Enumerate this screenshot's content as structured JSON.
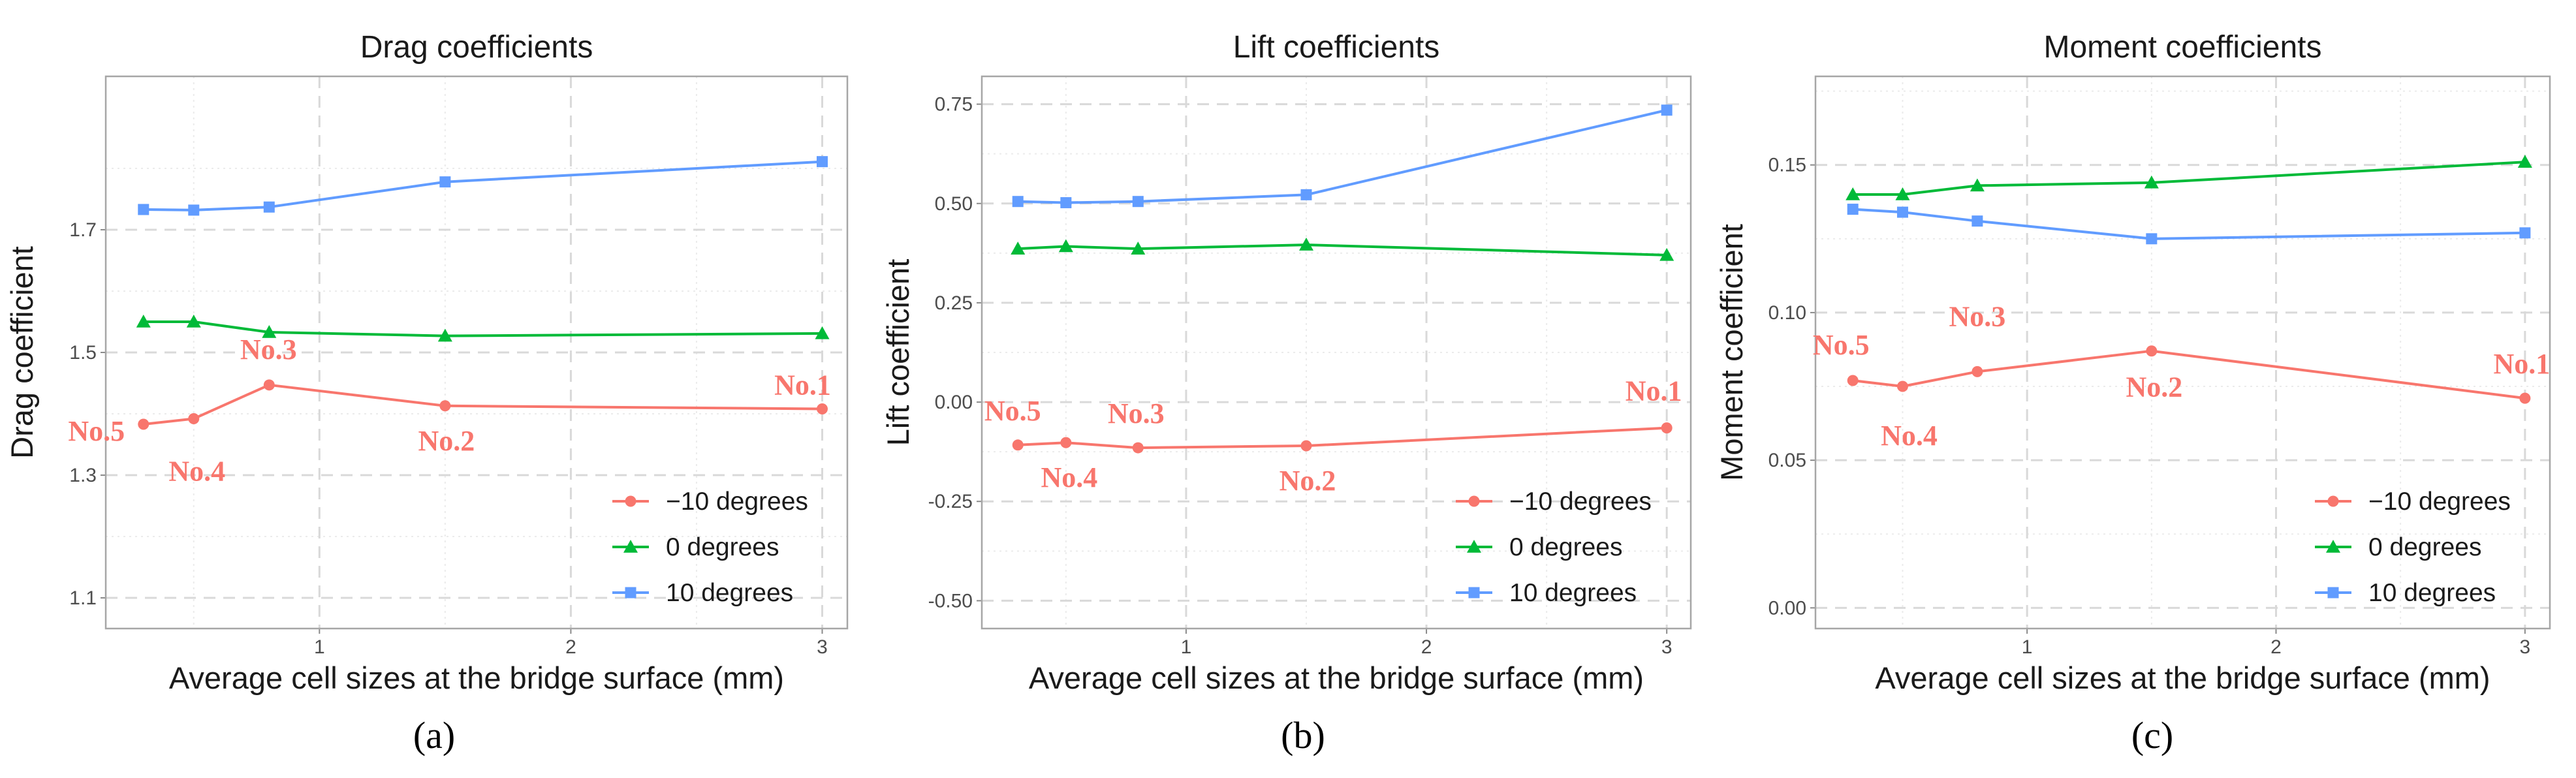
{
  "chart_data": [
    {
      "type": "line",
      "title": "Drag coefficients",
      "xlabel": "Average cell sizes at the bridge surface (mm)",
      "ylabel": "Drag coefficient",
      "caption": "(a)",
      "xlim": [
        0.15,
        3.1
      ],
      "ylim": [
        1.05,
        1.95
      ],
      "xticks": [
        1,
        2,
        3
      ],
      "xtick_labels": [
        "1",
        "2",
        "3"
      ],
      "yticks": [
        1.1,
        1.3,
        1.5,
        1.7
      ],
      "ytick_labels": [
        "1.1",
        "1.3",
        "1.5",
        "1.7"
      ],
      "legend_position": "bottom-right",
      "x": [
        0.3,
        0.5,
        0.8,
        1.5,
        3.0
      ],
      "series": [
        {
          "name": "−10 degrees",
          "color": "#f8766d",
          "marker": "circle",
          "values": [
            1.383,
            1.392,
            1.447,
            1.413,
            1.408
          ]
        },
        {
          "name": "0 degrees",
          "color": "#00ba38",
          "marker": "triangle",
          "values": [
            1.55,
            1.55,
            1.533,
            1.527,
            1.531
          ]
        },
        {
          "name": "10 degrees",
          "color": "#619cff",
          "marker": "square",
          "values": [
            1.733,
            1.732,
            1.737,
            1.778,
            1.811
          ]
        }
      ],
      "annotations": [
        {
          "text": "No.5",
          "x": 0.3,
          "y": 1.383
        },
        {
          "text": "No.4",
          "x": 0.5,
          "y": 1.392
        },
        {
          "text": "No.3",
          "x": 0.8,
          "y": 1.447
        },
        {
          "text": "No.2",
          "x": 1.5,
          "y": 1.413
        },
        {
          "text": "No.1",
          "x": 3.0,
          "y": 1.408
        }
      ]
    },
    {
      "type": "line",
      "title": "Lift coefficients",
      "xlabel": "Average cell sizes at the bridge surface (mm)",
      "ylabel": "Lift coefficient",
      "caption": "(b)",
      "xlim": [
        0.15,
        3.1
      ],
      "ylim": [
        -0.57,
        0.82
      ],
      "xticks": [
        1,
        2,
        3
      ],
      "xtick_labels": [
        "1",
        "2",
        "3"
      ],
      "yticks": [
        -0.5,
        -0.25,
        0,
        0.25,
        0.5,
        0.75
      ],
      "ytick_labels": [
        "-0.50",
        "-0.25",
        "0.00",
        "0.25",
        "0.50",
        "0.75"
      ],
      "legend_position": "bottom-right",
      "x": [
        0.3,
        0.5,
        0.8,
        1.5,
        3.0
      ],
      "series": [
        {
          "name": "−10 degrees",
          "color": "#f8766d",
          "marker": "circle",
          "values": [
            -0.108,
            -0.102,
            -0.115,
            -0.11,
            -0.065
          ]
        },
        {
          "name": "0 degrees",
          "color": "#00ba38",
          "marker": "triangle",
          "values": [
            0.386,
            0.392,
            0.386,
            0.396,
            0.37
          ]
        },
        {
          "name": "10 degrees",
          "color": "#619cff",
          "marker": "square",
          "values": [
            0.505,
            0.502,
            0.505,
            0.522,
            0.735
          ]
        }
      ],
      "annotations": [
        {
          "text": "No.5",
          "x": 0.3,
          "y": -0.108
        },
        {
          "text": "No.4",
          "x": 0.5,
          "y": -0.102
        },
        {
          "text": "No.3",
          "x": 0.8,
          "y": -0.115
        },
        {
          "text": "No.2",
          "x": 1.5,
          "y": -0.11
        },
        {
          "text": "No.1",
          "x": 3.0,
          "y": -0.065
        }
      ]
    },
    {
      "type": "line",
      "title": "Moment coefficients",
      "xlabel": "Average cell sizes at the bridge surface (mm)",
      "ylabel": "Moment coefficient",
      "caption": "(c)",
      "xlim": [
        0.15,
        3.1
      ],
      "ylim": [
        -0.007,
        0.18
      ],
      "xticks": [
        1,
        2,
        3
      ],
      "xtick_labels": [
        "1",
        "2",
        "3"
      ],
      "yticks": [
        0,
        0.05,
        0.1,
        0.15
      ],
      "ytick_labels": [
        "0.00",
        "0.05",
        "0.10",
        "0.15"
      ],
      "legend_position": "bottom-right",
      "x": [
        0.3,
        0.5,
        0.8,
        1.5,
        3.0
      ],
      "series": [
        {
          "name": "−10 degrees",
          "color": "#f8766d",
          "marker": "circle",
          "values": [
            0.077,
            0.075,
            0.08,
            0.087,
            0.071
          ]
        },
        {
          "name": "0 degrees",
          "color": "#00ba38",
          "marker": "triangle",
          "values": [
            0.14,
            0.14,
            0.143,
            0.144,
            0.151
          ]
        },
        {
          "name": "10 degrees",
          "color": "#619cff",
          "marker": "square",
          "values": [
            0.135,
            0.134,
            0.131,
            0.125,
            0.127
          ]
        }
      ],
      "annotations": [
        {
          "text": "No.5",
          "x": 0.3,
          "y": 0.077
        },
        {
          "text": "No.4",
          "x": 0.5,
          "y": 0.075
        },
        {
          "text": "No.3",
          "x": 0.8,
          "y": 0.08
        },
        {
          "text": "No.2",
          "x": 1.5,
          "y": 0.087
        },
        {
          "text": "No.1",
          "x": 3.0,
          "y": 0.071
        }
      ]
    }
  ]
}
